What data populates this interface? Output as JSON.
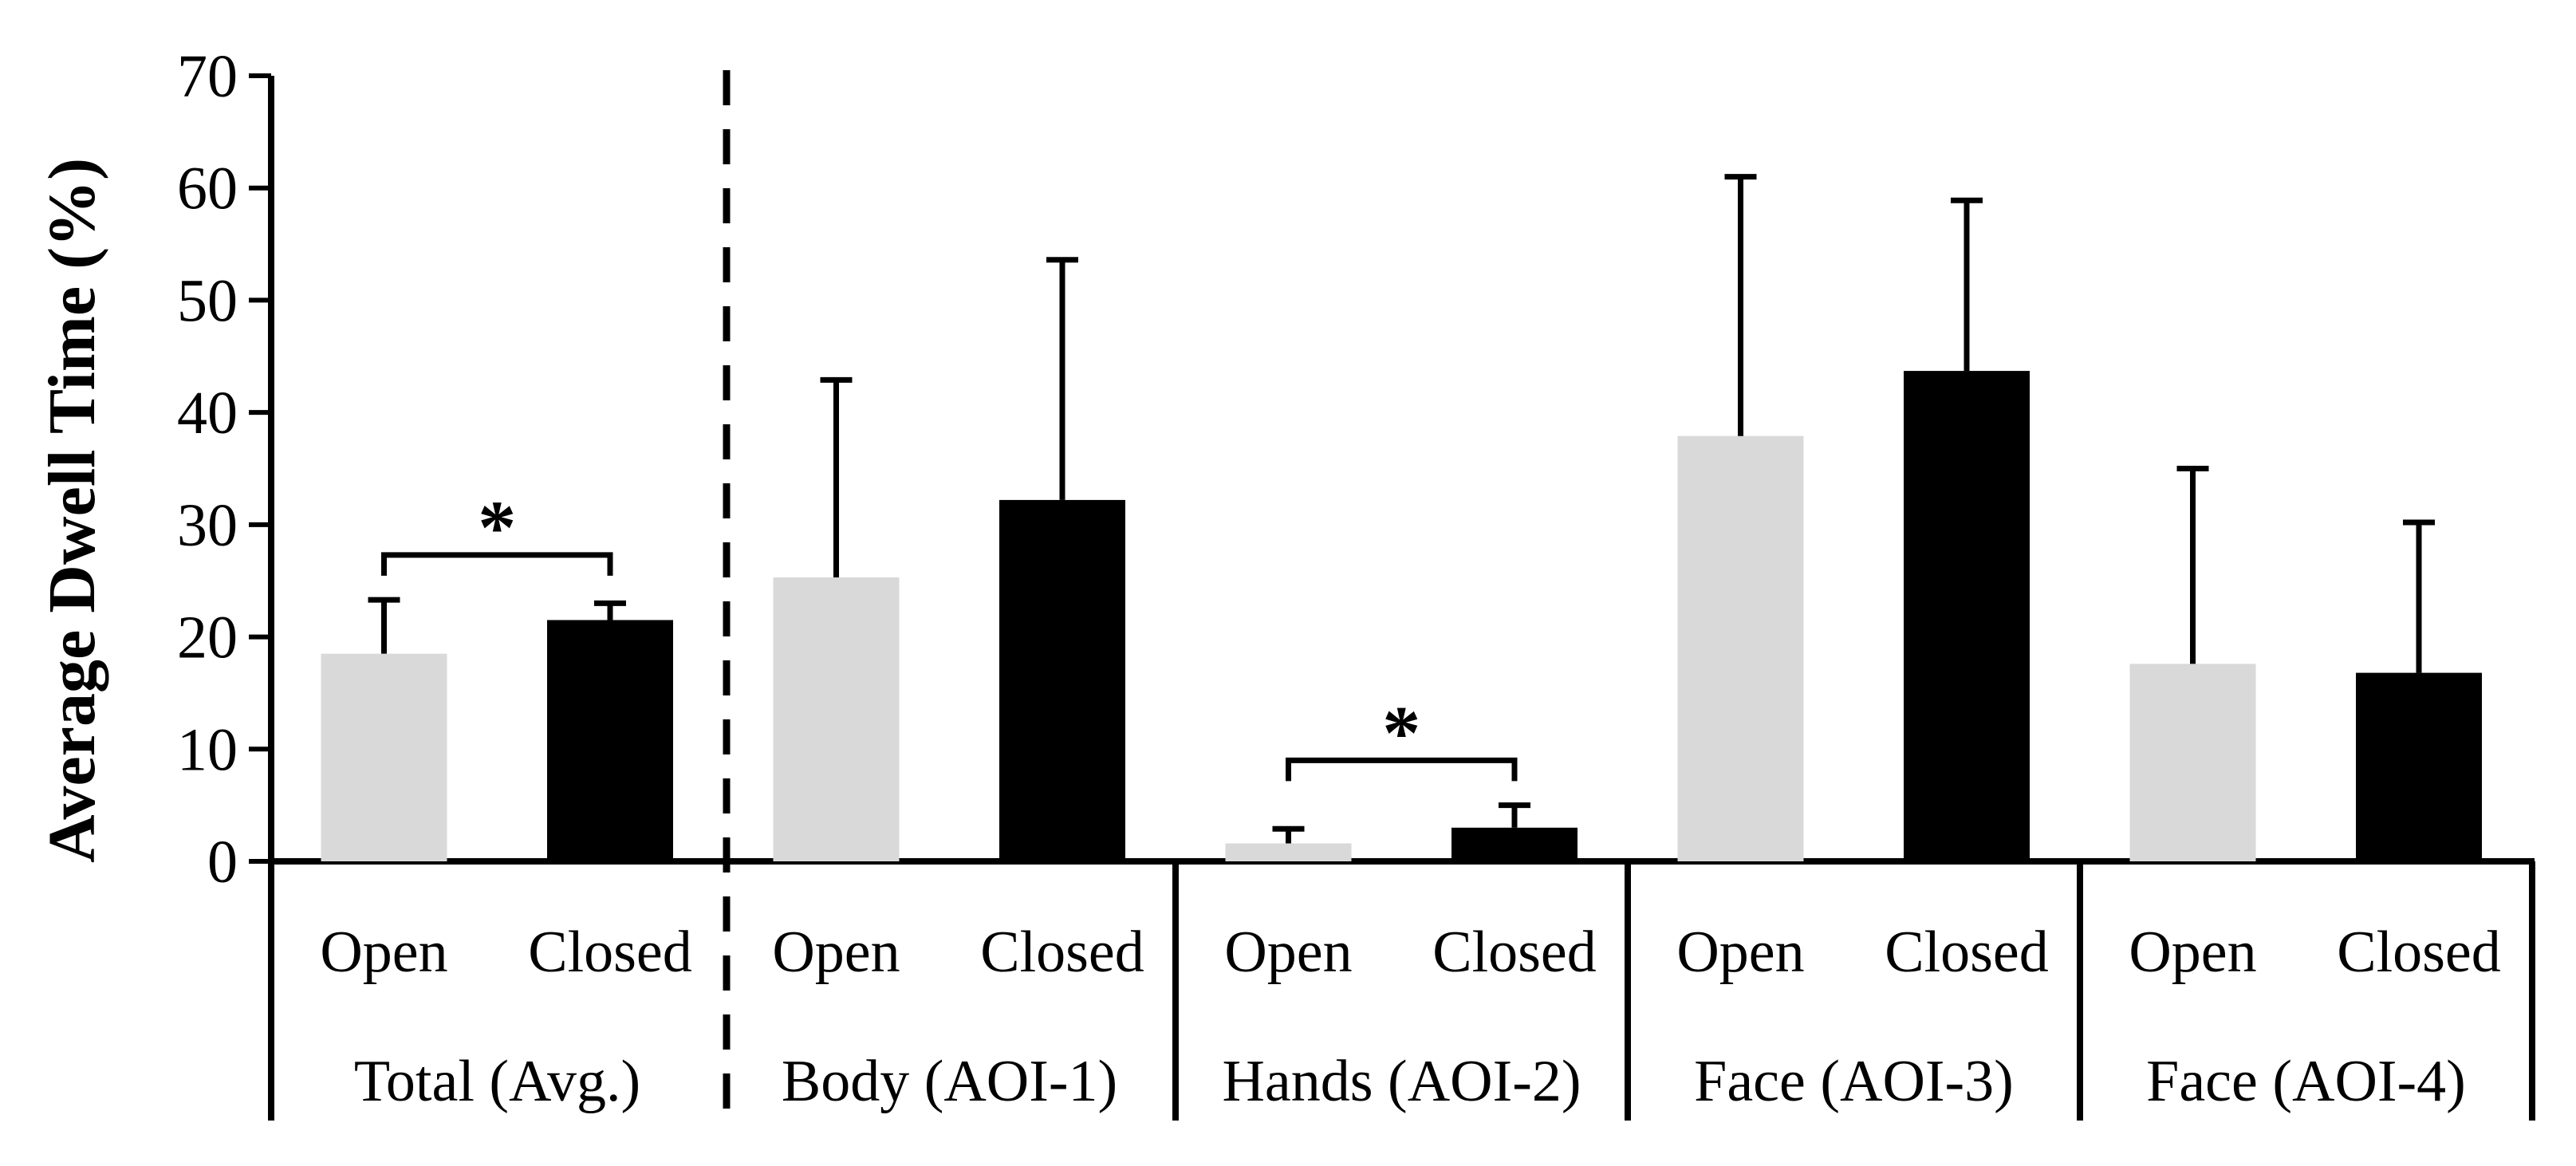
{
  "chart_data": {
    "type": "bar",
    "title": "",
    "xlabel": "",
    "ylabel": "Average Dwell Time (%)",
    "ylim": [
      0,
      70
    ],
    "yticks": [
      "0",
      "10",
      "20",
      "30",
      "40",
      "50",
      "60",
      "70"
    ],
    "grid": false,
    "legend": "none",
    "series_colors": {
      "Open": "#d9d9d9",
      "Closed": "#000000"
    },
    "groups": [
      {
        "label": "Total (Avg.)",
        "bars": [
          {
            "label": "Open",
            "value": 18.5,
            "error": 4.8
          },
          {
            "label": "Closed",
            "value": 21.5,
            "error": 1.5
          }
        ],
        "significance": "*"
      },
      {
        "label": "Body (AOI-1)",
        "bars": [
          {
            "label": "Open",
            "value": 25.3,
            "error": 17.6
          },
          {
            "label": "Closed",
            "value": 32.2,
            "error": 21.4
          }
        ]
      },
      {
        "label": "Hands (AOI-2)",
        "bars": [
          {
            "label": "Open",
            "value": 1.6,
            "error": 1.3
          },
          {
            "label": "Closed",
            "value": 3.0,
            "error": 2.0
          }
        ],
        "significance": "*"
      },
      {
        "label": "Face (AOI-3)",
        "bars": [
          {
            "label": "Open",
            "value": 37.9,
            "error": 23.1
          },
          {
            "label": "Closed",
            "value": 43.7,
            "error": 15.2
          }
        ]
      },
      {
        "label": "Face (AOI-4)",
        "bars": [
          {
            "label": "Open",
            "value": 17.6,
            "error": 17.4
          },
          {
            "label": "Closed",
            "value": 16.8,
            "error": 13.4
          }
        ]
      }
    ]
  }
}
